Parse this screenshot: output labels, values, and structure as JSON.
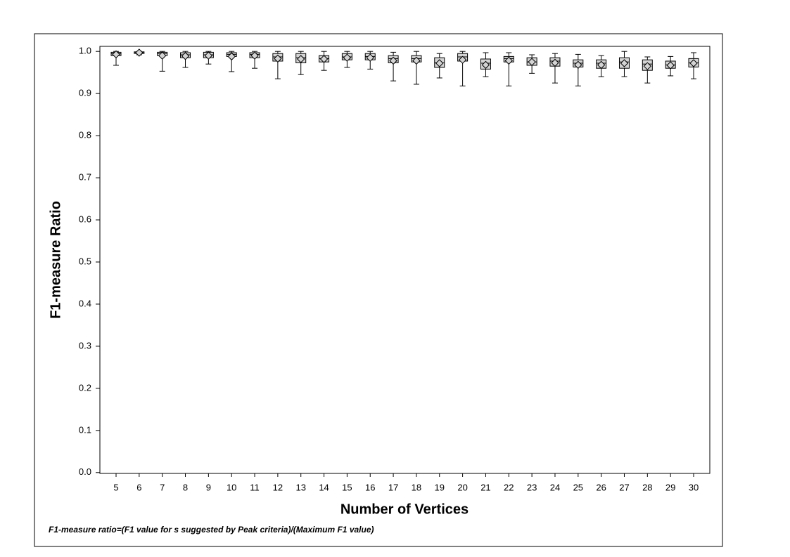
{
  "chart_data": {
    "type": "box",
    "x_label": "Number of Vertices",
    "y_label": "F1-measure Ratio",
    "note": "F1-measure ratio=(F1 value for s suggested by Peak criteria)/(Maximum F1 value)",
    "categories": [
      5,
      6,
      7,
      8,
      9,
      10,
      11,
      12,
      13,
      14,
      15,
      16,
      17,
      18,
      19,
      20,
      21,
      22,
      23,
      24,
      25,
      26,
      27,
      28,
      29,
      30
    ],
    "color": "#d4d4d4",
    "low": [
      0.967,
      0.992,
      0.953,
      0.962,
      0.97,
      0.952,
      0.96,
      0.935,
      0.945,
      0.955,
      0.962,
      0.958,
      0.93,
      0.922,
      0.937,
      0.918,
      0.94,
      0.918,
      0.948,
      0.925,
      0.918,
      0.94,
      0.94,
      0.925,
      0.942,
      0.935
    ],
    "q1": [
      0.99,
      0.995,
      0.99,
      0.985,
      0.985,
      0.988,
      0.985,
      0.977,
      0.973,
      0.975,
      0.98,
      0.98,
      0.973,
      0.975,
      0.962,
      0.977,
      0.958,
      0.975,
      0.967,
      0.965,
      0.963,
      0.96,
      0.96,
      0.955,
      0.96,
      0.963
    ],
    "median": [
      0.995,
      0.998,
      0.995,
      0.992,
      0.992,
      0.993,
      0.993,
      0.987,
      0.985,
      0.983,
      0.987,
      0.988,
      0.983,
      0.983,
      0.973,
      0.987,
      0.972,
      0.983,
      0.975,
      0.977,
      0.972,
      0.972,
      0.975,
      0.97,
      0.968,
      0.973
    ],
    "q3": [
      0.998,
      0.999,
      0.998,
      0.997,
      0.998,
      0.997,
      0.997,
      0.995,
      0.995,
      0.99,
      0.995,
      0.995,
      0.99,
      0.99,
      0.985,
      0.995,
      0.982,
      0.988,
      0.985,
      0.985,
      0.98,
      0.98,
      0.985,
      0.98,
      0.977,
      0.983
    ],
    "high": [
      1.0,
      1.0,
      1.0,
      1.0,
      1.0,
      1.0,
      1.0,
      1.0,
      1.0,
      1.0,
      1.0,
      1.0,
      0.998,
      1.0,
      0.995,
      1.0,
      0.997,
      0.997,
      0.992,
      0.995,
      0.993,
      0.99,
      1.0,
      0.987,
      0.988,
      0.997
    ],
    "mean": [
      0.993,
      0.997,
      0.99,
      0.989,
      0.99,
      0.988,
      0.99,
      0.983,
      0.982,
      0.982,
      0.985,
      0.985,
      0.978,
      0.978,
      0.972,
      0.98,
      0.968,
      0.978,
      0.975,
      0.973,
      0.968,
      0.968,
      0.972,
      0.965,
      0.967,
      0.972
    ],
    "ylim": [
      -0.002,
      1.012
    ],
    "yticks": [
      {
        "value": 0,
        "label": "0.0"
      },
      0.1,
      0.2,
      0.3,
      0.4,
      0.5,
      0.6,
      0.7,
      0.8,
      0.9,
      {
        "value": 1,
        "label": "1.0"
      }
    ]
  }
}
